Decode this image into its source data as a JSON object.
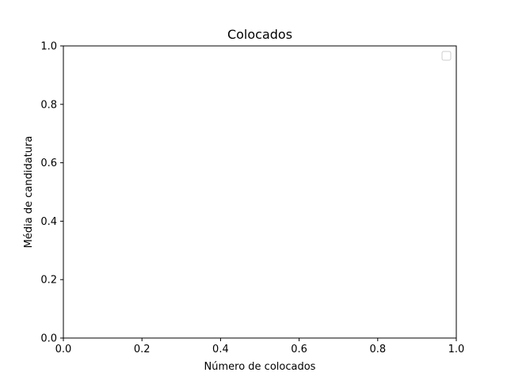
{
  "chart_data": {
    "type": "scatter",
    "title": "Colocados",
    "xlabel": "Número de colocados",
    "ylabel": "Média de candidatura",
    "xlim": [
      0.0,
      1.0
    ],
    "ylim": [
      0.0,
      1.0
    ],
    "x_ticks": [
      "0.0",
      "0.2",
      "0.4",
      "0.6",
      "0.8",
      "1.0"
    ],
    "y_ticks": [
      "0.0",
      "0.2",
      "0.4",
      "0.6",
      "0.8",
      "1.0"
    ],
    "grid": false,
    "legend": {
      "placement": "top-right",
      "entries": []
    },
    "series": []
  }
}
